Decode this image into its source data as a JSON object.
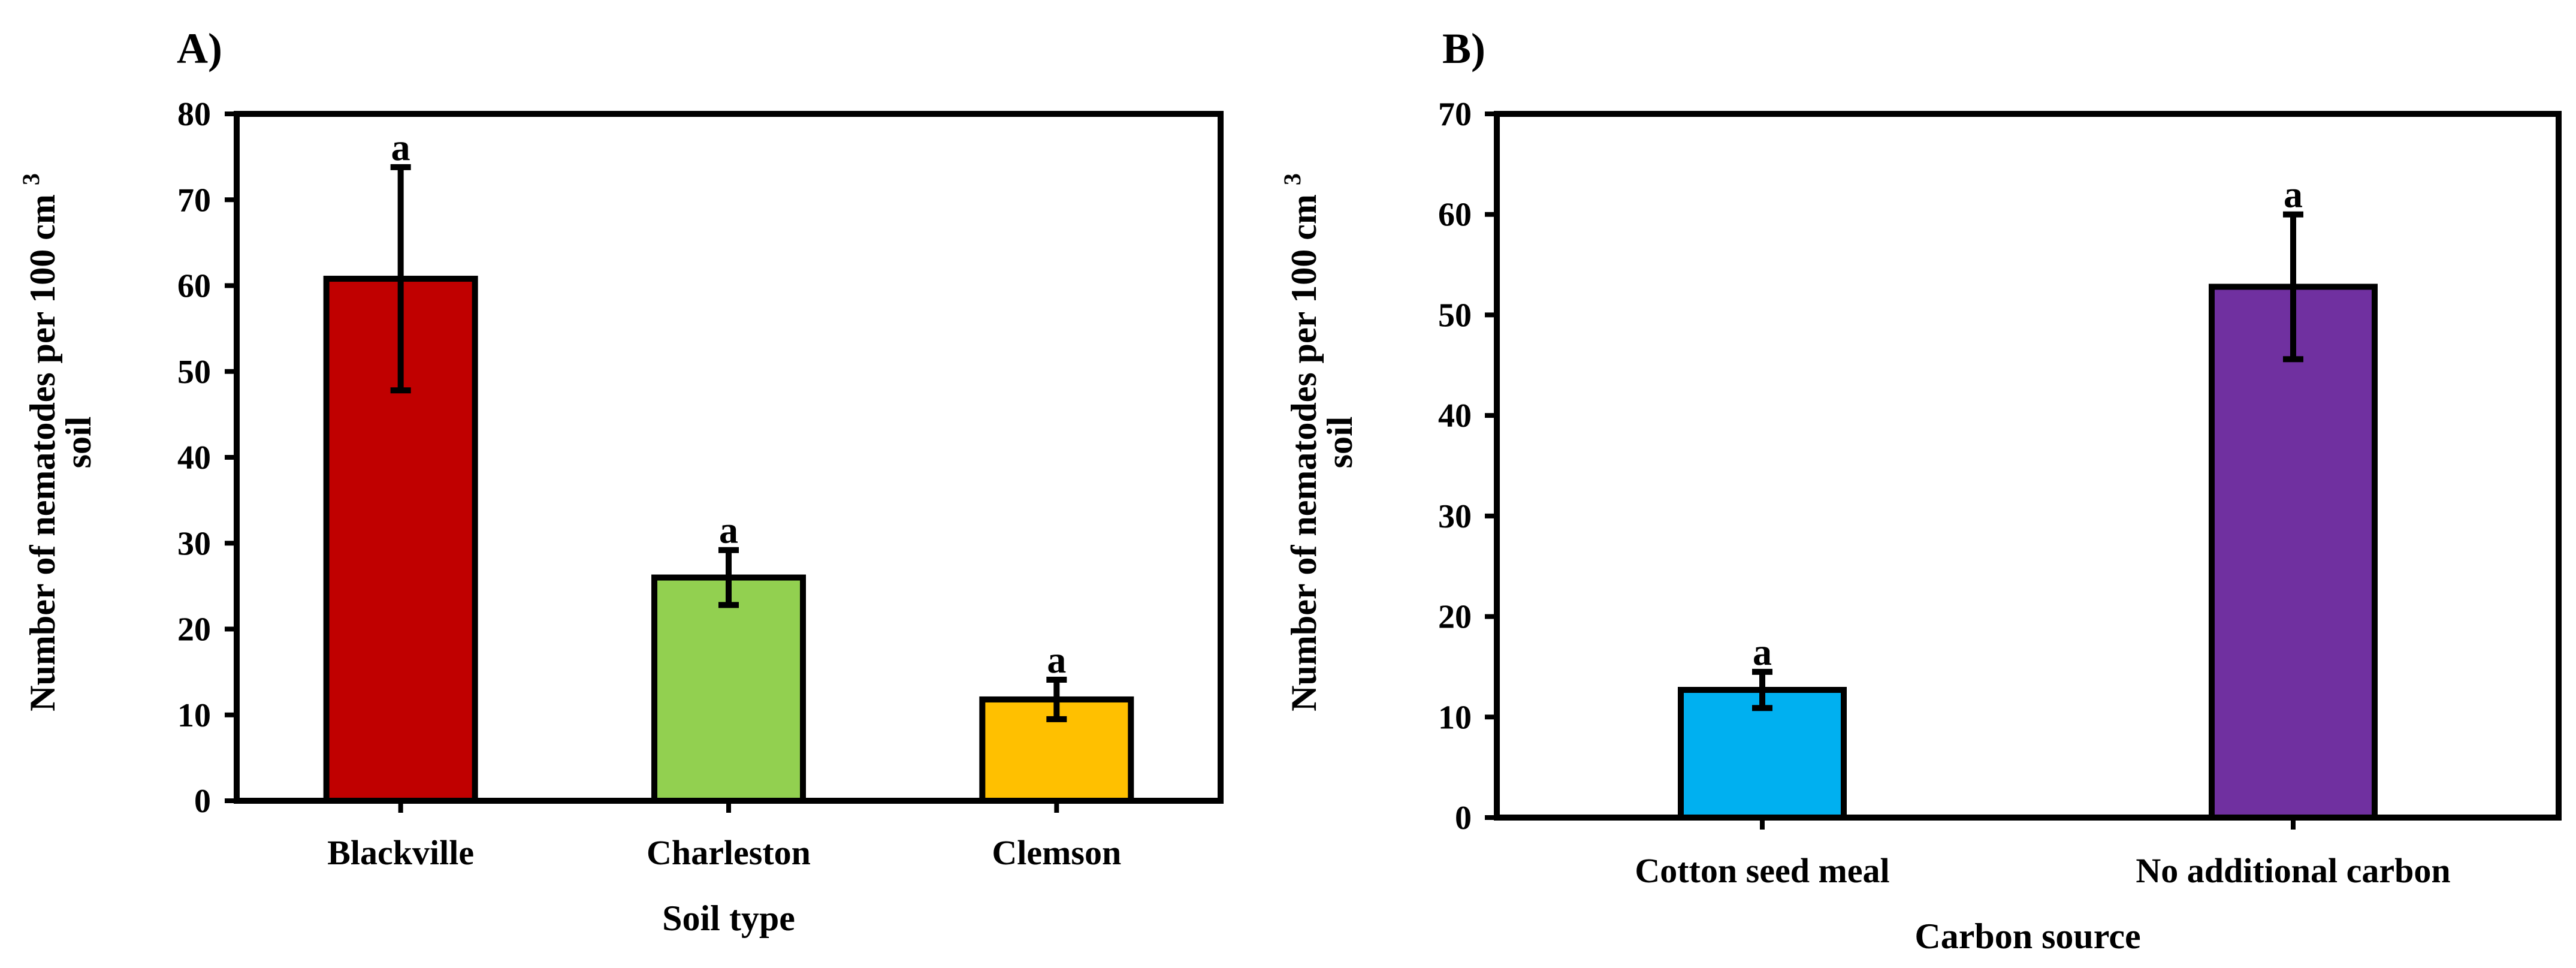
{
  "chart_data": [
    {
      "panel": "A)",
      "type": "bar",
      "categories": [
        "Blackville",
        "Charleston",
        "Clemson"
      ],
      "values": [
        60.8,
        26.0,
        11.8
      ],
      "errors": [
        13.0,
        3.2,
        2.3
      ],
      "significance": [
        "a",
        "a",
        "a"
      ],
      "colors": [
        "#c00000",
        "#92d050",
        "#ffc000"
      ],
      "xlabel": "Soil  type",
      "ylabel_line1": "Number of nematodes per 100 cm",
      "ylabel_sup": "3",
      "ylabel_line2": "soil",
      "ylim": [
        0,
        80
      ],
      "yticks": [
        0,
        10,
        20,
        30,
        40,
        50,
        60,
        70,
        80
      ],
      "grid": false,
      "legend": "none"
    },
    {
      "panel": "B)",
      "type": "bar",
      "categories": [
        "Cotton seed meal",
        "No additional carbon"
      ],
      "values": [
        12.7,
        52.8
      ],
      "errors": [
        1.8,
        7.2
      ],
      "significance": [
        "a",
        "a"
      ],
      "colors": [
        "#00b0f0",
        "#7030a0"
      ],
      "xlabel": "Carbon source",
      "ylabel_line1": "Number of nematodes per 100 cm",
      "ylabel_sup": "3",
      "ylabel_line2": "soil",
      "ylim": [
        0,
        70
      ],
      "yticks": [
        0,
        10,
        20,
        30,
        40,
        50,
        60,
        70
      ],
      "grid": false,
      "legend": "none"
    }
  ]
}
